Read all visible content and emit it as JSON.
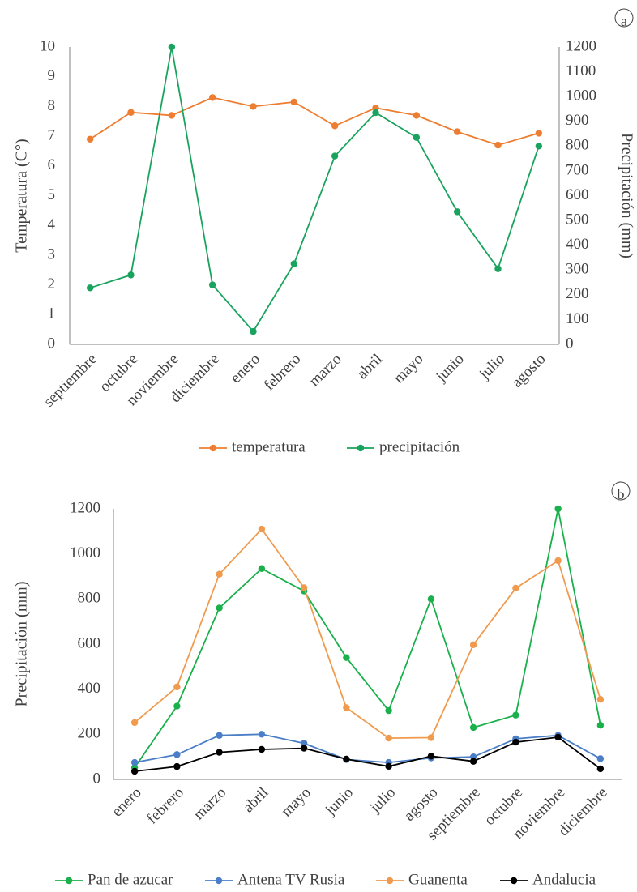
{
  "chart_data": [
    {
      "id": "a",
      "panel_label": "a",
      "type": "line",
      "categories": [
        "septiembre",
        "octubre",
        "noviembre",
        "diciembre",
        "enero",
        "febrero",
        "marzo",
        "abril",
        "mayo",
        "junio",
        "julio",
        "agosto"
      ],
      "ylabel": "Temperatura (C°)",
      "y2label": "Precipitación (mm)",
      "ylim": [
        0,
        10
      ],
      "y2lim": [
        0,
        1200
      ],
      "yticks": [
        0,
        1,
        2,
        3,
        4,
        5,
        6,
        7,
        8,
        9,
        10
      ],
      "y2ticks": [
        0,
        100,
        200,
        300,
        400,
        500,
        600,
        700,
        800,
        900,
        1000,
        1100,
        1200
      ],
      "grid": false,
      "legend_position": "bottom",
      "series": [
        {
          "name": "temperatura",
          "axis": "left",
          "color": "#ED7D31",
          "values": [
            6.9,
            7.8,
            7.7,
            8.3,
            8.0,
            8.15,
            7.35,
            7.95,
            7.7,
            7.15,
            6.7,
            7.1
          ]
        },
        {
          "name": "precipitación",
          "axis": "right",
          "color": "#1AA35E",
          "values": [
            228,
            280,
            1200,
            240,
            52,
            325,
            760,
            935,
            835,
            535,
            305,
            800
          ]
        }
      ]
    },
    {
      "id": "b",
      "panel_label": "b",
      "type": "line",
      "categories": [
        "enero",
        "febrero",
        "marzo",
        "abril",
        "mayo",
        "junio",
        "julio",
        "agosto",
        "septiembre",
        "octubre",
        "noviembre",
        "diciembre"
      ],
      "xlabel": "",
      "ylabel": "Precipitación (mm)",
      "ylim": [
        0,
        1200
      ],
      "yticks": [
        0,
        200,
        400,
        600,
        800,
        1000,
        1200
      ],
      "grid": false,
      "legend_position": "bottom",
      "series": [
        {
          "name": "Pan de azucar",
          "color": "#1AB04C",
          "values": [
            52,
            325,
            760,
            935,
            835,
            540,
            305,
            800,
            230,
            285,
            1200,
            240
          ]
        },
        {
          "name": "Antena TV Rusia",
          "color": "#4A7EC7",
          "values": [
            75,
            110,
            195,
            200,
            160,
            88,
            75,
            95,
            100,
            180,
            195,
            92
          ]
        },
        {
          "name": "Guanenta",
          "color": "#F09A4E",
          "values": [
            252,
            410,
            910,
            1110,
            850,
            318,
            183,
            185,
            597,
            848,
            970,
            355
          ]
        },
        {
          "name": "Andalucia",
          "color": "#000000",
          "values": [
            36,
            57,
            120,
            133,
            138,
            90,
            58,
            103,
            80,
            165,
            187,
            47
          ]
        }
      ]
    }
  ]
}
